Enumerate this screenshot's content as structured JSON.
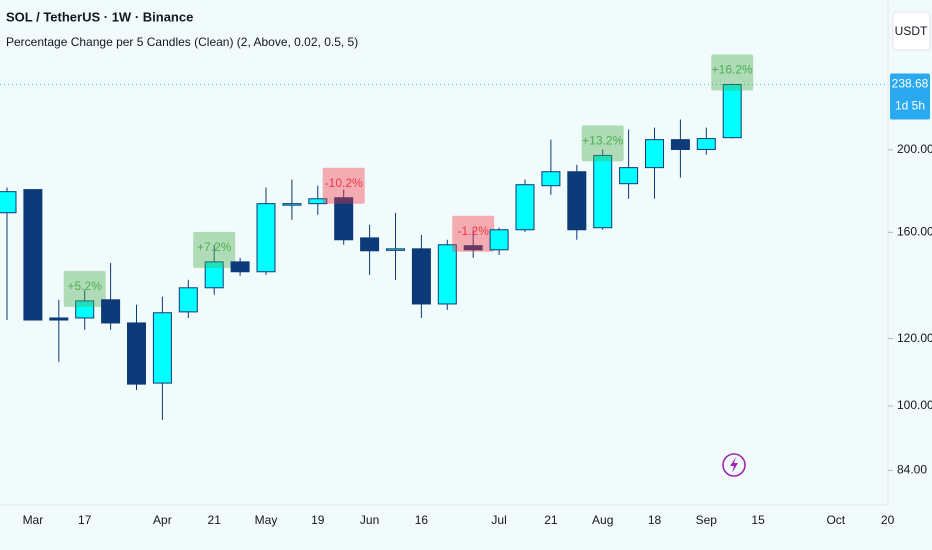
{
  "chart_data": {
    "type": "candlestick",
    "title": "SOL / TetherUS · 1W · Binance",
    "subtitle": "Percentage Change per 5 Candles (Clean) (2, Above, 0.02, 0.5, 5)",
    "currency": "USDT",
    "current_price": 238.68,
    "current_price_label": "238.68",
    "countdown": "1d 5h",
    "log_scale": true,
    "grid": false,
    "up_color": "#00ffff",
    "down_color": "#0d3a78",
    "label_up_color": "#4caf50",
    "label_down_color": "#f23645",
    "categories": [
      null,
      "Mar",
      null,
      "17",
      null,
      null,
      "Apr",
      null,
      "21",
      null,
      "May",
      null,
      "19",
      null,
      "Jun",
      null,
      "16",
      null,
      null,
      "Jul",
      null,
      "21",
      null,
      "Aug",
      null,
      "18",
      null,
      "Sep",
      null,
      "15",
      null,
      null,
      "Oct",
      null,
      "20"
    ],
    "open": [
      168.7,
      179.6,
      126.9,
      126.9,
      133.3,
      125.2,
      106.4,
      129.0,
      137.7,
      147.7,
      143.8,
      172.9,
      172.9,
      175.7,
      157.6,
      153.0,
      153.0,
      131.8,
      154.3,
      152.6,
      161.1,
      181.5,
      188.5,
      162.0,
      182.5,
      190.6,
      205.6,
      200.2,
      206.7,
      null,
      null,
      null,
      null,
      null,
      null
    ],
    "high": [
      180.6,
      179.6,
      133.3,
      136.9,
      147.3,
      131.5,
      134.4,
      140.7,
      154.7,
      149.3,
      180.6,
      184.5,
      181.5,
      179.6,
      163.3,
      168.7,
      158.9,
      156.8,
      161.1,
      162.0,
      184.5,
      205.6,
      192.1,
      200.2,
      211.3,
      212.4,
      217.1,
      212.4,
      239.3,
      null,
      null,
      null,
      null,
      null,
      null
    ],
    "low": [
      126.2,
      126.2,
      112.7,
      122.9,
      122.9,
      104.4,
      96.3,
      126.9,
      135.1,
      142.2,
      142.6,
      165.5,
      167.8,
      154.7,
      142.6,
      140.7,
      126.9,
      129.7,
      149.3,
      150.5,
      160.2,
      177.1,
      156.8,
      161.1,
      175.2,
      175.2,
      185.5,
      197.4,
      206.2,
      null,
      null,
      null,
      null,
      null,
      null
    ],
    "close": [
      178.6,
      126.2,
      126.2,
      132.9,
      125.2,
      106.1,
      128.7,
      137.7,
      147.7,
      143.8,
      172.9,
      172.9,
      175.2,
      156.8,
      152.2,
      153.0,
      131.8,
      154.7,
      152.6,
      161.1,
      182.0,
      188.5,
      161.1,
      197.0,
      190.6,
      205.6,
      200.2,
      206.2,
      238.68,
      null,
      null,
      null,
      null,
      null,
      null
    ],
    "change_labels": [
      null,
      null,
      null,
      "+5.2%",
      null,
      null,
      null,
      null,
      "+7.2%",
      null,
      null,
      null,
      null,
      "-10.2%",
      null,
      null,
      null,
      null,
      "-1.2%",
      null,
      null,
      null,
      null,
      "+13.2%",
      null,
      null,
      null,
      null,
      "+16.2%",
      null,
      null,
      null,
      null,
      null,
      null
    ],
    "ylim": [
      76.5,
      300
    ],
    "yticks": [
      {
        "value": 84,
        "label": "84.00"
      },
      {
        "value": 100,
        "label": "100.00"
      },
      {
        "value": 120,
        "label": "120.00"
      },
      {
        "value": 160,
        "label": "160.00"
      },
      {
        "value": 200,
        "label": "200.00"
      }
    ]
  }
}
